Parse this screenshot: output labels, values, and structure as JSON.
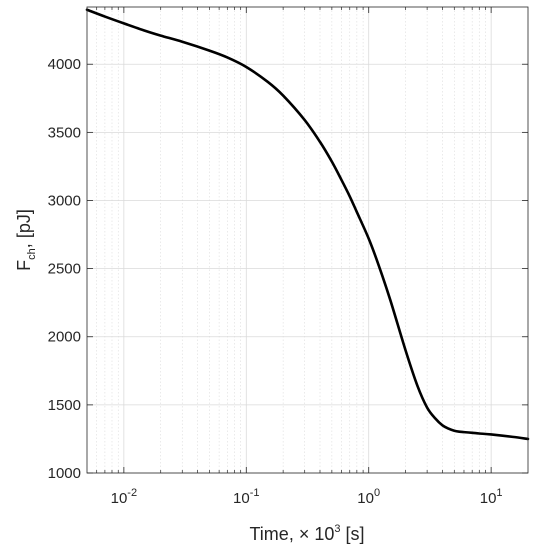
{
  "chart_data": {
    "type": "line",
    "xlabel": {
      "prefix": "Time, ",
      "times": "×",
      "base": " 10",
      "exp": "3",
      "unit": " [s]"
    },
    "ylabel": {
      "main": "F",
      "sub": "ch",
      "unit": ", [pJ]"
    },
    "xscale": "log",
    "xlim": [
      0.005,
      20
    ],
    "ylim": [
      1000,
      4420
    ],
    "grid": true,
    "x_ticks": [
      {
        "value": 0.01,
        "base": "10",
        "exp": "-2"
      },
      {
        "value": 0.1,
        "base": "10",
        "exp": "-1"
      },
      {
        "value": 1,
        "base": "10",
        "exp": "0"
      },
      {
        "value": 10,
        "base": "10",
        "exp": "1"
      }
    ],
    "y_ticks": [
      {
        "value": 1000,
        "label": "1000"
      },
      {
        "value": 1500,
        "label": "1500"
      },
      {
        "value": 2000,
        "label": "2000"
      },
      {
        "value": 2500,
        "label": "2500"
      },
      {
        "value": 3000,
        "label": "3000"
      },
      {
        "value": 3500,
        "label": "3500"
      },
      {
        "value": 4000,
        "label": "4000"
      }
    ],
    "line_color": "#000000",
    "series": [
      {
        "x": [
          0.005,
          0.007,
          0.01,
          0.015,
          0.02,
          0.03,
          0.05,
          0.07,
          0.1,
          0.15,
          0.2,
          0.3,
          0.4,
          0.5,
          0.6,
          0.7,
          0.8,
          1.0,
          1.2,
          1.5,
          2.0,
          2.5,
          3.0,
          3.5,
          4.0,
          4.5,
          5.0,
          5.5,
          6.0,
          7.0,
          8.0,
          10.0,
          15.0,
          20.0
        ],
        "y": [
          4400,
          4350,
          4300,
          4245,
          4210,
          4165,
          4100,
          4050,
          3980,
          3870,
          3770,
          3590,
          3430,
          3285,
          3150,
          3030,
          2915,
          2720,
          2530,
          2270,
          1900,
          1640,
          1480,
          1400,
          1350,
          1325,
          1310,
          1303,
          1300,
          1295,
          1290,
          1283,
          1265,
          1250
        ]
      }
    ]
  }
}
